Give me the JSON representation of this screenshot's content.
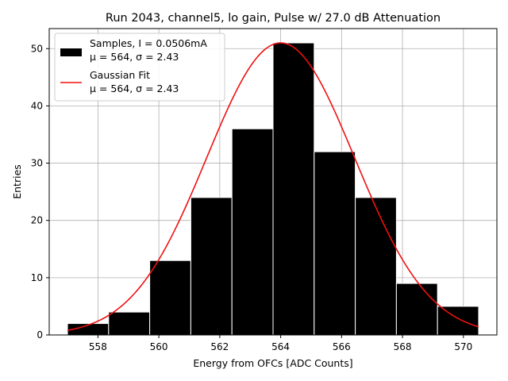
{
  "chart_data": {
    "type": "bar",
    "title": "Run 2043, channel5, lo gain, Pulse w/ 27.0 dB Attenuation",
    "xlabel": "Energy from OFCs [ADC Counts]",
    "ylabel": "Entries",
    "xlim": [
      556.4,
      571.1
    ],
    "ylim": [
      0,
      53.5
    ],
    "xticks": [
      558,
      560,
      562,
      564,
      566,
      568,
      570
    ],
    "yticks": [
      0,
      10,
      20,
      30,
      40,
      50
    ],
    "grid": true,
    "legend_position": "top-left",
    "histogram": {
      "name": "Samples, I = 0.0506mA",
      "stats": "μ = 564, σ = 2.43",
      "bin_edges": [
        557.0,
        558.35,
        559.7,
        561.05,
        562.4,
        563.75,
        565.1,
        566.45,
        567.8,
        569.15,
        570.5
      ],
      "counts": [
        2,
        4,
        13,
        24,
        36,
        51,
        32,
        24,
        9,
        5
      ],
      "color": "#000000",
      "edgecolor": "#ffffff"
    },
    "fit": {
      "name": "Gaussian Fit",
      "stats": "μ = 564, σ = 2.43",
      "amplitude": 51,
      "mu": 564,
      "sigma": 2.43,
      "x_range": [
        557.0,
        570.5
      ],
      "color": "#ee1111"
    }
  }
}
